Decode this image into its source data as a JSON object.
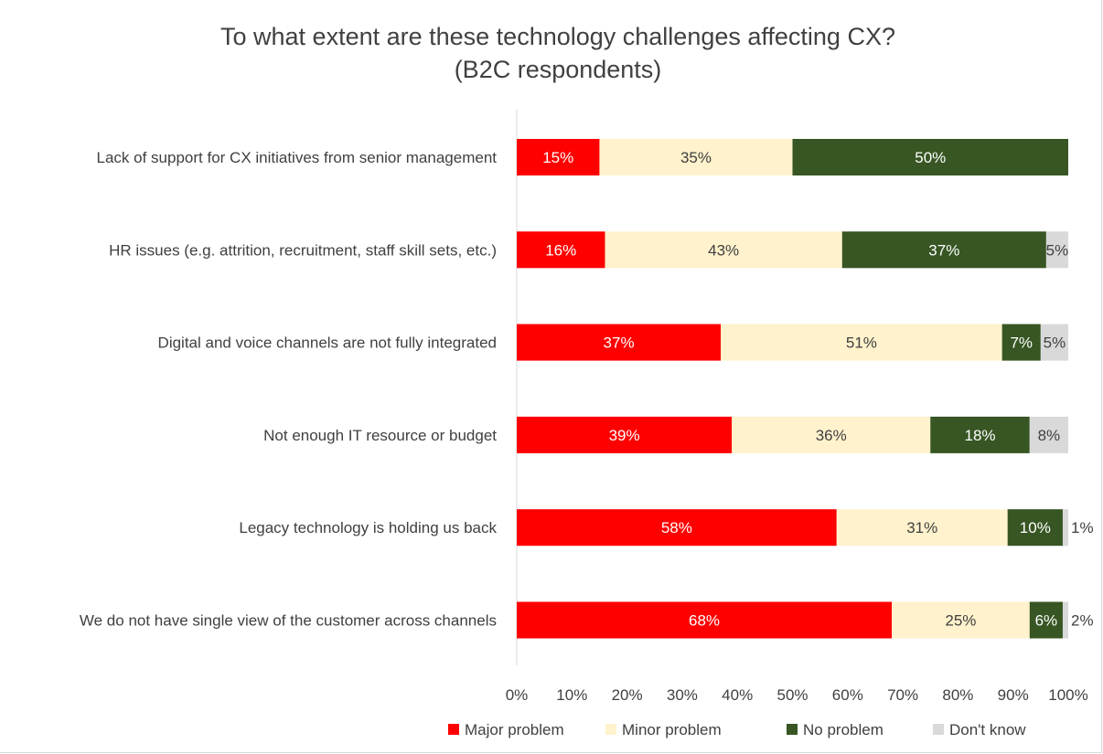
{
  "chart_data": {
    "type": "bar",
    "orientation": "horizontal",
    "stacked": "100%",
    "title": "To what extent are these technology challenges affecting CX?",
    "subtitle": "(B2C respondents)",
    "categories": [
      "Lack of support for CX initiatives from senior management",
      "HR issues (e.g. attrition, recruitment, staff skill sets, etc.)",
      "Digital and voice channels are not fully integrated",
      "Not enough IT resource or budget",
      "Legacy technology is holding us back",
      "We do not have single view of the customer across channels"
    ],
    "series": [
      {
        "name": "Major problem",
        "color": "#ff0000",
        "label_color": "#ffffff",
        "values": [
          15,
          16,
          37,
          39,
          58,
          68
        ]
      },
      {
        "name": "Minor problem",
        "color": "#fff2cc",
        "label_color": "#404040",
        "values": [
          35,
          43,
          51,
          36,
          31,
          25
        ]
      },
      {
        "name": "No problem",
        "color": "#375623",
        "label_color": "#ffffff",
        "values": [
          50,
          37,
          7,
          18,
          10,
          6
        ]
      },
      {
        "name": "Don't know",
        "color": "#d9d9d9",
        "label_color": "#404040",
        "values": [
          null,
          5,
          5,
          8,
          1,
          2
        ]
      }
    ],
    "xlim": [
      0,
      100
    ],
    "x_ticks": [
      "0%",
      "10%",
      "20%",
      "30%",
      "40%",
      "50%",
      "60%",
      "70%",
      "80%",
      "90%",
      "100%"
    ],
    "legend_position": "bottom",
    "grid": false
  }
}
